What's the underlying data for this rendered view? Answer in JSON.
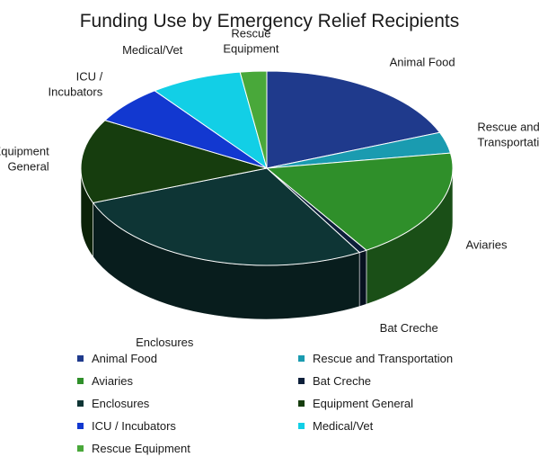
{
  "chart_data": {
    "type": "pie",
    "title": "Funding Use by Emergency Relief Recipients",
    "legend_position": "bottom",
    "slices": [
      {
        "label": "Animal Food",
        "value": 19.0,
        "color": "#1f3a8c"
      },
      {
        "label": "Rescue and Transportation",
        "value": 3.5,
        "color": "#1a9bb0"
      },
      {
        "label": "Aviaries",
        "value": 18.5,
        "color": "#2f8f2a"
      },
      {
        "label": "Bat Creche",
        "value": 0.7,
        "color": "#0d1f3a"
      },
      {
        "label": "Enclosures",
        "value": 27.5,
        "color": "#0e3535"
      },
      {
        "label": "Equipment General",
        "value": 14.0,
        "color": "#163d0e"
      },
      {
        "label": "ICU / Incubators",
        "value": 6.5,
        "color": "#1238d0"
      },
      {
        "label": "Medical/Vet",
        "value": 8.0,
        "color": "#12cfe6"
      },
      {
        "label": "Rescue Equipment",
        "value": 2.3,
        "color": "#49a83a"
      }
    ]
  }
}
